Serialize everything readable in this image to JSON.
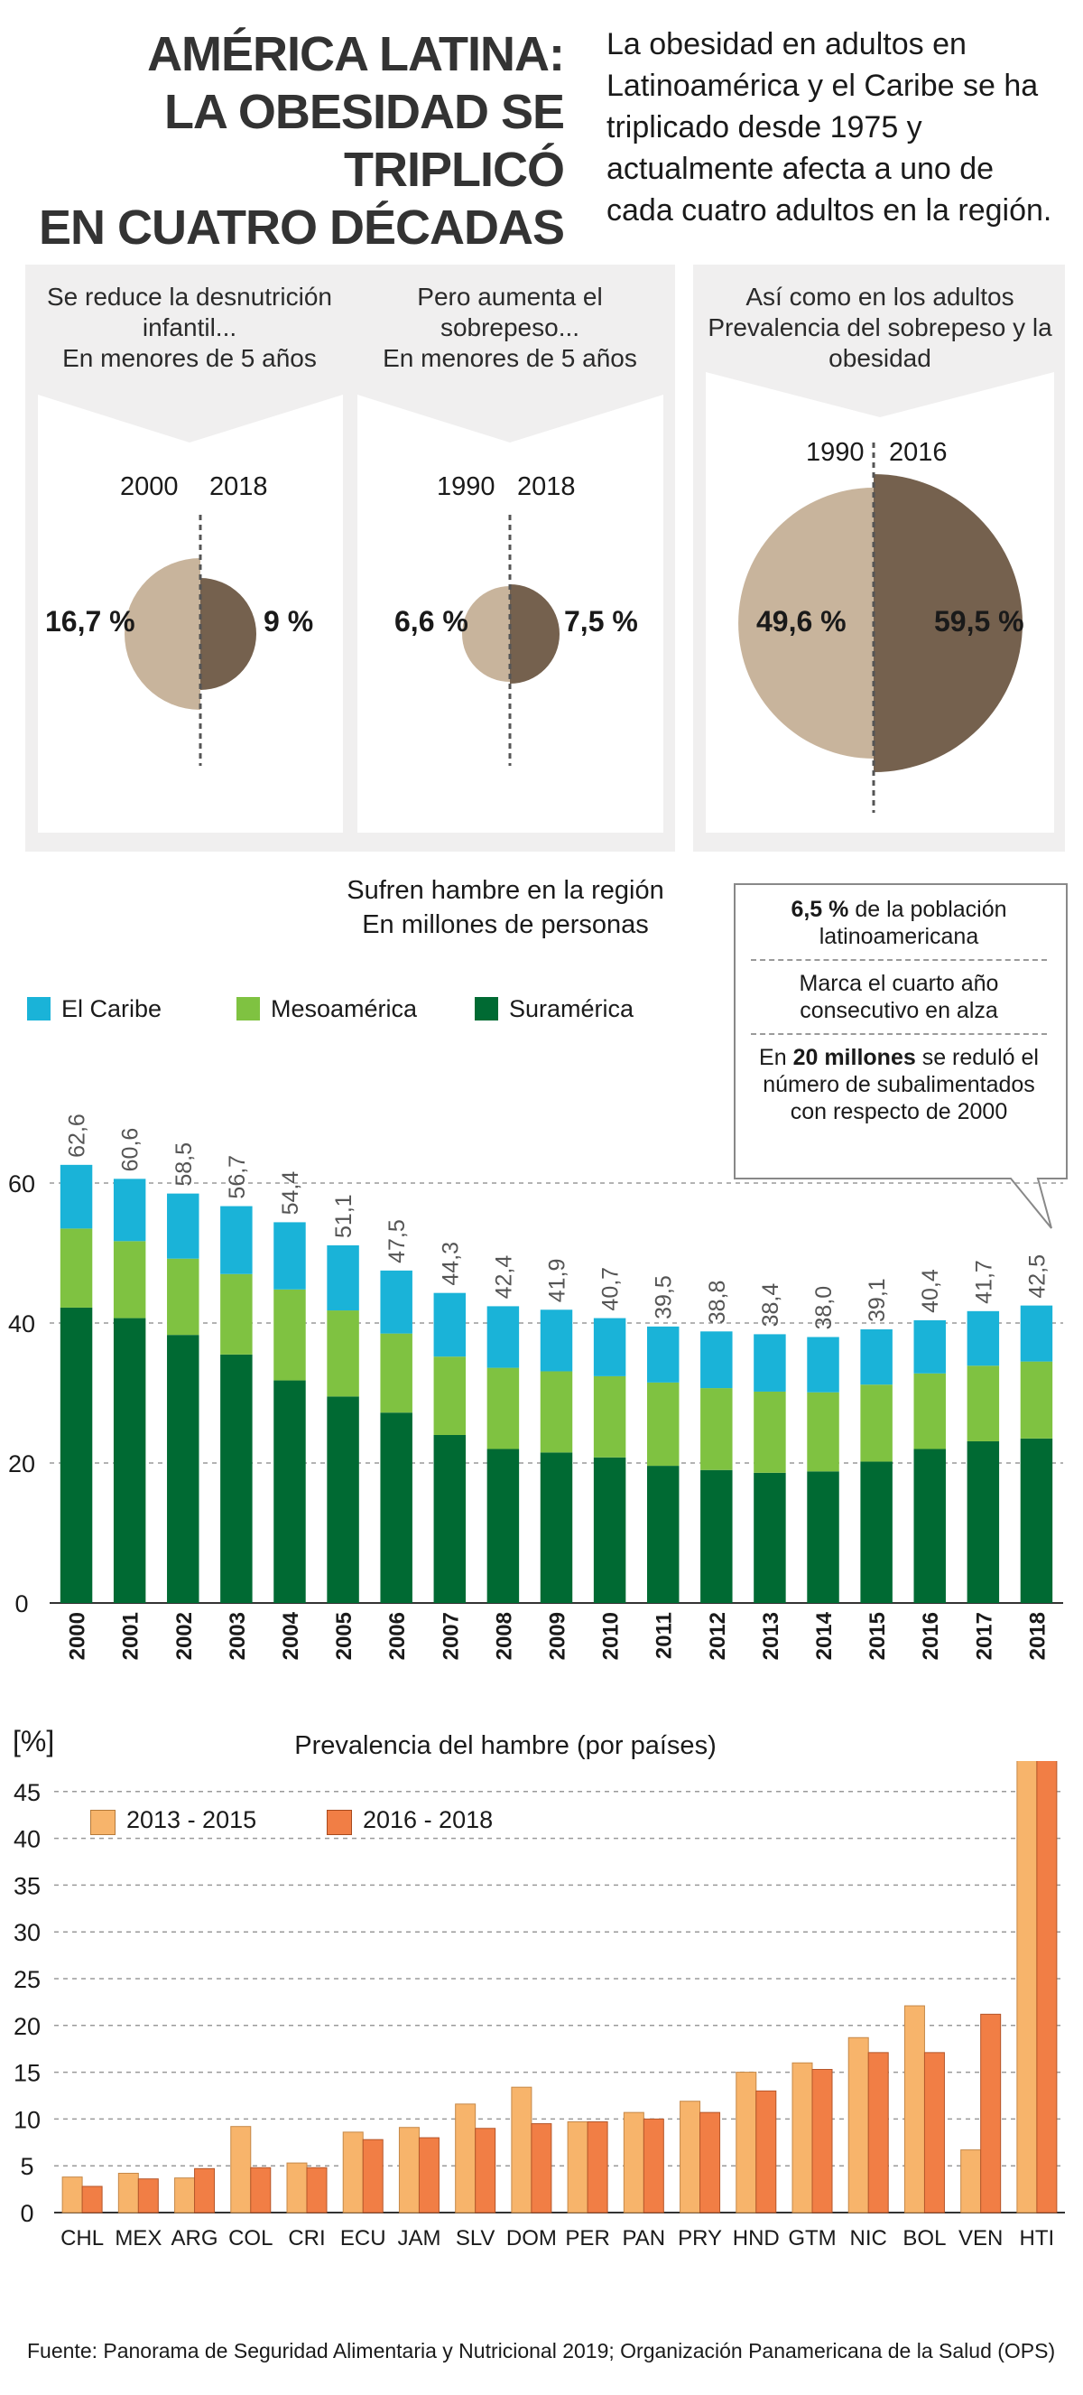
{
  "header": {
    "title_lines": [
      "AMÉRICA LATINA:",
      "LA OBESIDAD SE TRIPLICÓ",
      "EN CUATRO DÉCADAS"
    ],
    "intro": "La obesidad en adultos en Latinoamérica y el Caribe se ha triplicado desde 1975 y actualmente afecta a uno de cada cuatro adultos en la región."
  },
  "colors": {
    "pie_light": "#c8b49c",
    "pie_dark": "#75614e",
    "caribe": "#1ab3d8",
    "mesoamerica": "#7fc241",
    "suramerica": "#006a33",
    "period1": "#f7b46b",
    "period2": "#f17e45",
    "panel_bg": "#f0efef"
  },
  "panels": [
    {
      "heading_lines": [
        "Se reduce la desnutrición",
        "infantil...",
        "En menores de 5 años"
      ],
      "left_year": "2000",
      "right_year": "2018",
      "left_label": "16,7 %",
      "right_label": "9 %"
    },
    {
      "heading_lines": [
        "Pero aumenta el sobrepeso...",
        "En menores de 5 años"
      ],
      "left_year": "1990",
      "right_year": "2018",
      "left_label": "6,6 %",
      "right_label": "7,5 %"
    },
    {
      "heading_lines": [
        "Así como en los adultos",
        "Prevalencia del sobrepeso y la",
        "obesidad"
      ],
      "left_year": "1990",
      "right_year": "2016",
      "left_label": "49,6 %",
      "right_label": "59,5 %"
    }
  ],
  "callout": {
    "line1_bold": "6,5 %",
    "line1_rest": " de la población",
    "line2": "latinoamericana",
    "line3": "Marca el cuarto año",
    "line4": "consecutivo en alza",
    "line5_pre": "En ",
    "line5_bold": "20 millones",
    "line5_post": " se reduló el",
    "line6": "número de subalimentados",
    "line7": "con respecto de 2000"
  },
  "chart_data": [
    {
      "type": "pie",
      "title": "Se reduce la desnutrición infantil... En menores de 5 años",
      "labels": [
        "2000",
        "2018"
      ],
      "values": [
        16.7,
        9.0
      ],
      "unit": "%"
    },
    {
      "type": "pie",
      "title": "Pero aumenta el sobrepeso... En menores de 5 años",
      "labels": [
        "1990",
        "2018"
      ],
      "values": [
        6.6,
        7.5
      ],
      "unit": "%"
    },
    {
      "type": "pie",
      "title": "Así como en los adultos Prevalencia del sobrepeso y la obesidad",
      "labels": [
        "1990",
        "2016"
      ],
      "values": [
        49.6,
        59.5
      ],
      "unit": "%"
    },
    {
      "type": "bar",
      "stacked": true,
      "title": "Sufren hambre en la región",
      "subtitle": "En millones de personas",
      "categories": [
        "2000",
        "2001",
        "2002",
        "2003",
        "2004",
        "2005",
        "2006",
        "2007",
        "2008",
        "2009",
        "2010",
        "2011",
        "2012",
        "2013",
        "2014",
        "2015",
        "2016",
        "2017",
        "2018"
      ],
      "series": [
        {
          "name": "Suramérica",
          "values": [
            42.2,
            40.7,
            38.3,
            35.5,
            31.8,
            29.5,
            27.2,
            24.0,
            22.0,
            21.5,
            20.8,
            19.6,
            19.0,
            18.6,
            18.8,
            20.2,
            22.0,
            23.1,
            23.5
          ]
        },
        {
          "name": "Mesoamérica",
          "values": [
            11.3,
            11.0,
            10.9,
            11.5,
            13.0,
            12.3,
            11.3,
            11.2,
            11.6,
            11.6,
            11.6,
            11.9,
            11.7,
            11.6,
            11.3,
            11.0,
            10.8,
            10.8,
            11.0
          ]
        },
        {
          "name": "El Caribe",
          "values": [
            9.1,
            8.9,
            9.3,
            9.7,
            9.6,
            9.3,
            9.0,
            9.1,
            8.8,
            8.8,
            8.3,
            8.0,
            8.1,
            8.2,
            7.9,
            7.9,
            7.6,
            7.8,
            8.0
          ]
        }
      ],
      "totals": [
        "62,6",
        "60,6",
        "58,5",
        "56,7",
        "54,4",
        "51,1",
        "47,5",
        "44,3",
        "42,4",
        "41,9",
        "40,7",
        "39,5",
        "38,8",
        "38,4",
        "38,0",
        "39,1",
        "40,4",
        "41,7",
        "42,5"
      ],
      "y_ticks": [
        "0",
        "20",
        "40",
        "60"
      ],
      "ylim": [
        0,
        70
      ],
      "grid": true,
      "legend": "top-left"
    },
    {
      "type": "bar",
      "title": "Prevalencia del hambre (por países)",
      "ylabel": "[%]",
      "categories": [
        "CHL",
        "MEX",
        "ARG",
        "COL",
        "CRI",
        "ECU",
        "JAM",
        "SLV",
        "DOM",
        "PER",
        "PAN",
        "PRY",
        "HND",
        "GTM",
        "NIC",
        "BOL",
        "VEN",
        "HTI"
      ],
      "series": [
        {
          "name": "2013 - 2015",
          "values": [
            3.8,
            4.2,
            3.7,
            9.2,
            5.3,
            8.6,
            9.1,
            11.6,
            13.4,
            9.7,
            10.7,
            11.9,
            15.0,
            16.0,
            18.7,
            22.1,
            6.7,
            49.3
          ]
        },
        {
          "name": "2016 - 2018",
          "values": [
            2.8,
            3.6,
            4.7,
            4.8,
            4.8,
            7.8,
            8.0,
            9.0,
            9.5,
            9.7,
            10.0,
            10.7,
            13.0,
            15.3,
            17.1,
            17.1,
            21.2,
            49.2
          ]
        }
      ],
      "y_ticks": [
        "0",
        "5",
        "10",
        "15",
        "20",
        "25",
        "30",
        "35",
        "40",
        "45",
        "50"
      ],
      "ylim": [
        0,
        50
      ],
      "grid": true,
      "legend": "top-left"
    }
  ],
  "source": "Fuente: Panorama de Seguridad Alimentaria y Nutricional 2019; Organización Panamericana de la Salud (OPS)"
}
